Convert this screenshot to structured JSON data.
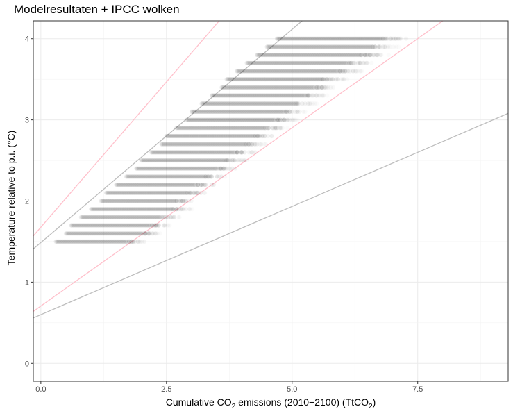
{
  "chart_data": {
    "type": "scatter",
    "title": "Modelresultaten + IPCC wolken",
    "xlabel_parts": [
      "Cumulative CO",
      "2",
      " emissions (2010−2100) (TtCO",
      "2",
      ")"
    ],
    "ylabel": "Temperature relative to p.i. (°C)",
    "xlim": [
      -0.15,
      9.3
    ],
    "ylim": [
      -0.22,
      4.22
    ],
    "x_ticks": [
      0,
      2.5,
      5,
      7.5
    ],
    "x_tick_labels": [
      "0.0",
      "2.5",
      "5.0",
      "7.5"
    ],
    "y_ticks": [
      0,
      1,
      2,
      3,
      4
    ],
    "y_tick_labels": [
      "0",
      "1",
      "2",
      "3",
      "4"
    ],
    "grid": true,
    "point_color": "#000000",
    "point_alpha": 0.08,
    "scatter_rows": [
      {
        "y": 1.5,
        "x_min": 0.3,
        "x_max": 2.1
      },
      {
        "y": 1.6,
        "x_min": 0.5,
        "x_max": 2.4
      },
      {
        "y": 1.7,
        "x_min": 0.6,
        "x_max": 2.6
      },
      {
        "y": 1.8,
        "x_min": 0.8,
        "x_max": 2.8
      },
      {
        "y": 1.9,
        "x_min": 1.0,
        "x_max": 3.0
      },
      {
        "y": 2.0,
        "x_min": 1.2,
        "x_max": 3.1
      },
      {
        "y": 2.1,
        "x_min": 1.3,
        "x_max": 3.3
      },
      {
        "y": 2.2,
        "x_min": 1.5,
        "x_max": 3.5
      },
      {
        "y": 2.3,
        "x_min": 1.7,
        "x_max": 3.7
      },
      {
        "y": 2.4,
        "x_min": 1.9,
        "x_max": 3.9
      },
      {
        "y": 2.5,
        "x_min": 2.0,
        "x_max": 4.1
      },
      {
        "y": 2.6,
        "x_min": 2.2,
        "x_max": 4.3
      },
      {
        "y": 2.7,
        "x_min": 2.4,
        "x_max": 4.5
      },
      {
        "y": 2.8,
        "x_min": 2.5,
        "x_max": 4.7
      },
      {
        "y": 2.9,
        "x_min": 2.7,
        "x_max": 4.9
      },
      {
        "y": 3.0,
        "x_min": 2.9,
        "x_max": 5.1
      },
      {
        "y": 3.1,
        "x_min": 3.0,
        "x_max": 5.3
      },
      {
        "y": 3.2,
        "x_min": 3.2,
        "x_max": 5.5
      },
      {
        "y": 3.3,
        "x_min": 3.4,
        "x_max": 5.7
      },
      {
        "y": 3.4,
        "x_min": 3.6,
        "x_max": 5.9
      },
      {
        "y": 3.5,
        "x_min": 3.7,
        "x_max": 6.1
      },
      {
        "y": 3.6,
        "x_min": 3.9,
        "x_max": 6.4
      },
      {
        "y": 3.7,
        "x_min": 4.1,
        "x_max": 6.6
      },
      {
        "y": 3.8,
        "x_min": 4.3,
        "x_max": 6.9
      },
      {
        "y": 3.9,
        "x_min": 4.5,
        "x_max": 7.1
      },
      {
        "y": 4.0,
        "x_min": 4.7,
        "x_max": 7.3
      }
    ],
    "reference_lines": [
      {
        "color": "#bdbdbd",
        "points": [
          [
            -0.15,
            1.41
          ],
          [
            5.2,
            4.22
          ]
        ]
      },
      {
        "color": "#bdbdbd",
        "points": [
          [
            -0.15,
            0.56
          ],
          [
            9.3,
            3.08
          ]
        ]
      },
      {
        "color": "#ffc0cb",
        "points": [
          [
            -0.15,
            1.57
          ],
          [
            3.55,
            4.22
          ]
        ]
      },
      {
        "color": "#ffc0cb",
        "points": [
          [
            -0.15,
            0.64
          ],
          [
            8.0,
            4.22
          ]
        ]
      }
    ]
  }
}
